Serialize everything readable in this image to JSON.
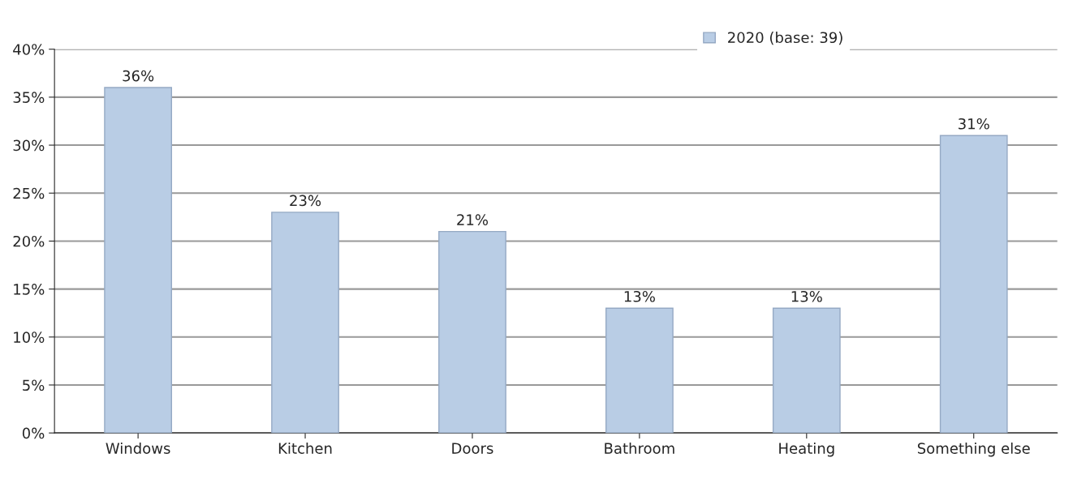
{
  "chart_data": {
    "type": "bar",
    "categories": [
      "Windows",
      "Kitchen",
      "Doors",
      "Bathroom",
      "Heating",
      "Something else"
    ],
    "series": [
      {
        "name": "2020 (base: 39)",
        "color": "#b9cde5",
        "values": [
          36,
          23,
          21,
          13,
          13,
          31
        ],
        "value_labels": [
          "36%",
          "23%",
          "21%",
          "13%",
          "13%",
          "31%"
        ]
      }
    ],
    "ylim": [
      0,
      40
    ],
    "yticks": [
      {
        "value": 0,
        "label": "0%"
      },
      {
        "value": 5,
        "label": "5%"
      },
      {
        "value": 10,
        "label": "10%"
      },
      {
        "value": 15,
        "label": "15%"
      },
      {
        "value": 20,
        "label": "20%"
      },
      {
        "value": 25,
        "label": "25%"
      },
      {
        "value": 30,
        "label": "30%"
      },
      {
        "value": 35,
        "label": "35%"
      },
      {
        "value": 40,
        "label": "40%"
      }
    ],
    "grid": "y",
    "legend": "top right"
  }
}
